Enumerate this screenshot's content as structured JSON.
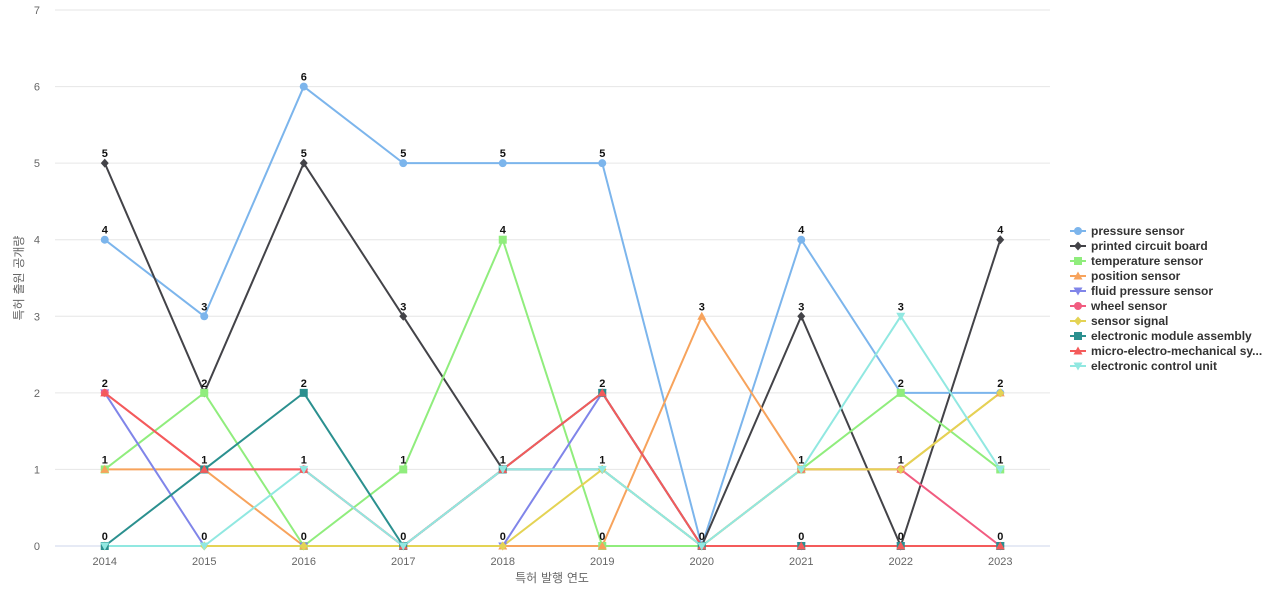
{
  "chart_data": {
    "type": "line",
    "xlabel": "특허 발행 연도",
    "ylabel": "특허 출원 공개량",
    "ylim": [
      0,
      7
    ],
    "yticks": [
      0,
      1,
      2,
      3,
      4,
      5,
      6,
      7
    ],
    "categories": [
      "2014",
      "2015",
      "2016",
      "2017",
      "2018",
      "2019",
      "2020",
      "2021",
      "2022",
      "2023"
    ],
    "grid": "horizontal",
    "legend_position": "right",
    "series": [
      {
        "name": "pressure sensor",
        "color": "#7cb5ec",
        "marker": "circle",
        "values": [
          4,
          3,
          6,
          5,
          5,
          5,
          0,
          4,
          2,
          2
        ]
      },
      {
        "name": "printed circuit board",
        "color": "#434348",
        "marker": "diamond",
        "values": [
          5,
          2,
          5,
          3,
          1,
          1,
          0,
          3,
          0,
          4
        ]
      },
      {
        "name": "temperature sensor",
        "color": "#90ed7d",
        "marker": "square",
        "values": [
          1,
          2,
          0,
          1,
          4,
          0,
          0,
          1,
          2,
          1
        ]
      },
      {
        "name": "position sensor",
        "color": "#f7a35c",
        "marker": "triangle",
        "values": [
          1,
          1,
          0,
          0,
          0,
          0,
          3,
          1,
          1,
          2
        ]
      },
      {
        "name": "fluid pressure sensor",
        "color": "#8085e9",
        "marker": "triangle-down",
        "values": [
          2,
          0,
          0,
          0,
          0,
          2,
          0,
          0,
          0,
          0
        ]
      },
      {
        "name": "wheel sensor",
        "color": "#f15c80",
        "marker": "circle",
        "values": [
          2,
          1,
          1,
          0,
          1,
          2,
          0,
          1,
          1,
          0
        ]
      },
      {
        "name": "sensor signal",
        "color": "#e4d354",
        "marker": "diamond",
        "values": [
          0,
          0,
          0,
          0,
          0,
          1,
          0,
          1,
          1,
          2
        ]
      },
      {
        "name": "electronic module assembly",
        "color": "#2b908f",
        "marker": "square",
        "values": [
          0,
          1,
          2,
          0,
          1,
          2,
          0,
          0,
          0,
          0
        ]
      },
      {
        "name": "micro-electro-mechanical sy...",
        "color": "#f45b5b",
        "marker": "triangle",
        "values": [
          2,
          1,
          1,
          0,
          1,
          2,
          0,
          0,
          0,
          0
        ]
      },
      {
        "name": "electronic control unit",
        "color": "#91e8e1",
        "marker": "triangle-down",
        "values": [
          0,
          0,
          1,
          0,
          1,
          1,
          0,
          1,
          3,
          1
        ]
      }
    ],
    "data_labels": [
      {
        "category": "2014",
        "values": [
          5,
          4,
          2,
          1,
          0
        ]
      },
      {
        "category": "2015",
        "values": [
          3,
          2,
          1,
          0
        ]
      },
      {
        "category": "2016",
        "values": [
          6,
          5,
          2,
          1,
          0
        ]
      },
      {
        "category": "2017",
        "values": [
          5,
          3,
          1,
          0
        ]
      },
      {
        "category": "2018",
        "values": [
          5,
          4,
          1,
          0
        ]
      },
      {
        "category": "2019",
        "values": [
          5,
          2,
          1,
          0
        ]
      },
      {
        "category": "2020",
        "values": [
          3,
          0
        ]
      },
      {
        "category": "2021",
        "values": [
          4,
          3,
          1,
          0
        ]
      },
      {
        "category": "2022",
        "values": [
          3,
          2,
          1,
          0
        ]
      },
      {
        "category": "2023",
        "values": [
          4,
          2,
          1,
          0
        ]
      }
    ]
  }
}
